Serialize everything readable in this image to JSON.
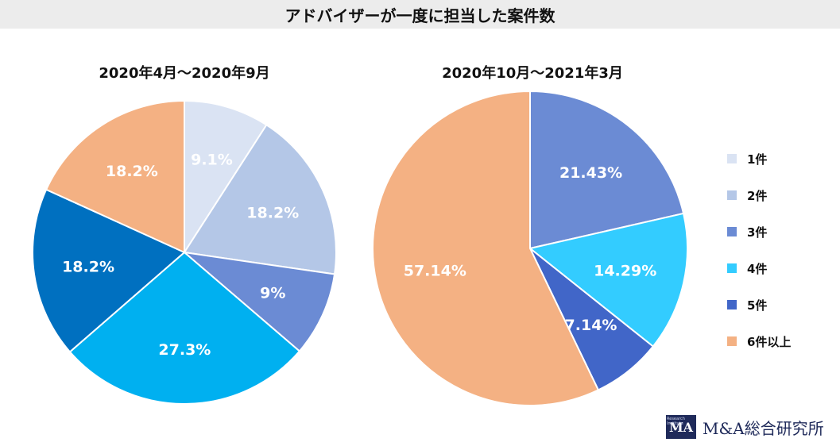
{
  "page_title": "アドバイザーが一度に担当した案件数",
  "legend": [
    "1件",
    "2件",
    "3件",
    "4件",
    "5件",
    "6件以上"
  ],
  "colors": {
    "1件": "#dae3f3",
    "2件": "#b4c7e7",
    "3件": "#6b8bd4",
    "4件": "#33ccff",
    "5件": "#4166c8",
    "6件以上": "#f4b183",
    "left_4件": "#00b0f0",
    "left_5件": "#0070c0"
  },
  "brand": {
    "mark_letters": "MA",
    "mark_small": "Research Institute",
    "name": "M&A総合研究所"
  },
  "chart_data": [
    {
      "type": "pie",
      "title": "2020年4月～2020年9月",
      "slices": [
        {
          "category": "1件",
          "value": 9.1,
          "label": "9.1%"
        },
        {
          "category": "2件",
          "value": 18.2,
          "label": "18.2%"
        },
        {
          "category": "3件",
          "value": 9.0,
          "label": "9%"
        },
        {
          "category": "4件",
          "value": 27.3,
          "label": "27.3%"
        },
        {
          "category": "5件",
          "value": 18.2,
          "label": "18.2%"
        },
        {
          "category": "6件以上",
          "value": 18.2,
          "label": "18.2%"
        }
      ]
    },
    {
      "type": "pie",
      "title": "2020年10月～2021年3月",
      "slices": [
        {
          "category": "3件",
          "value": 21.43,
          "label": "21.43%"
        },
        {
          "category": "4件",
          "value": 14.29,
          "label": "14.29%"
        },
        {
          "category": "5件",
          "value": 7.14,
          "label": "7.14%"
        },
        {
          "category": "6件以上",
          "value": 57.14,
          "label": "57.14%"
        }
      ]
    }
  ]
}
